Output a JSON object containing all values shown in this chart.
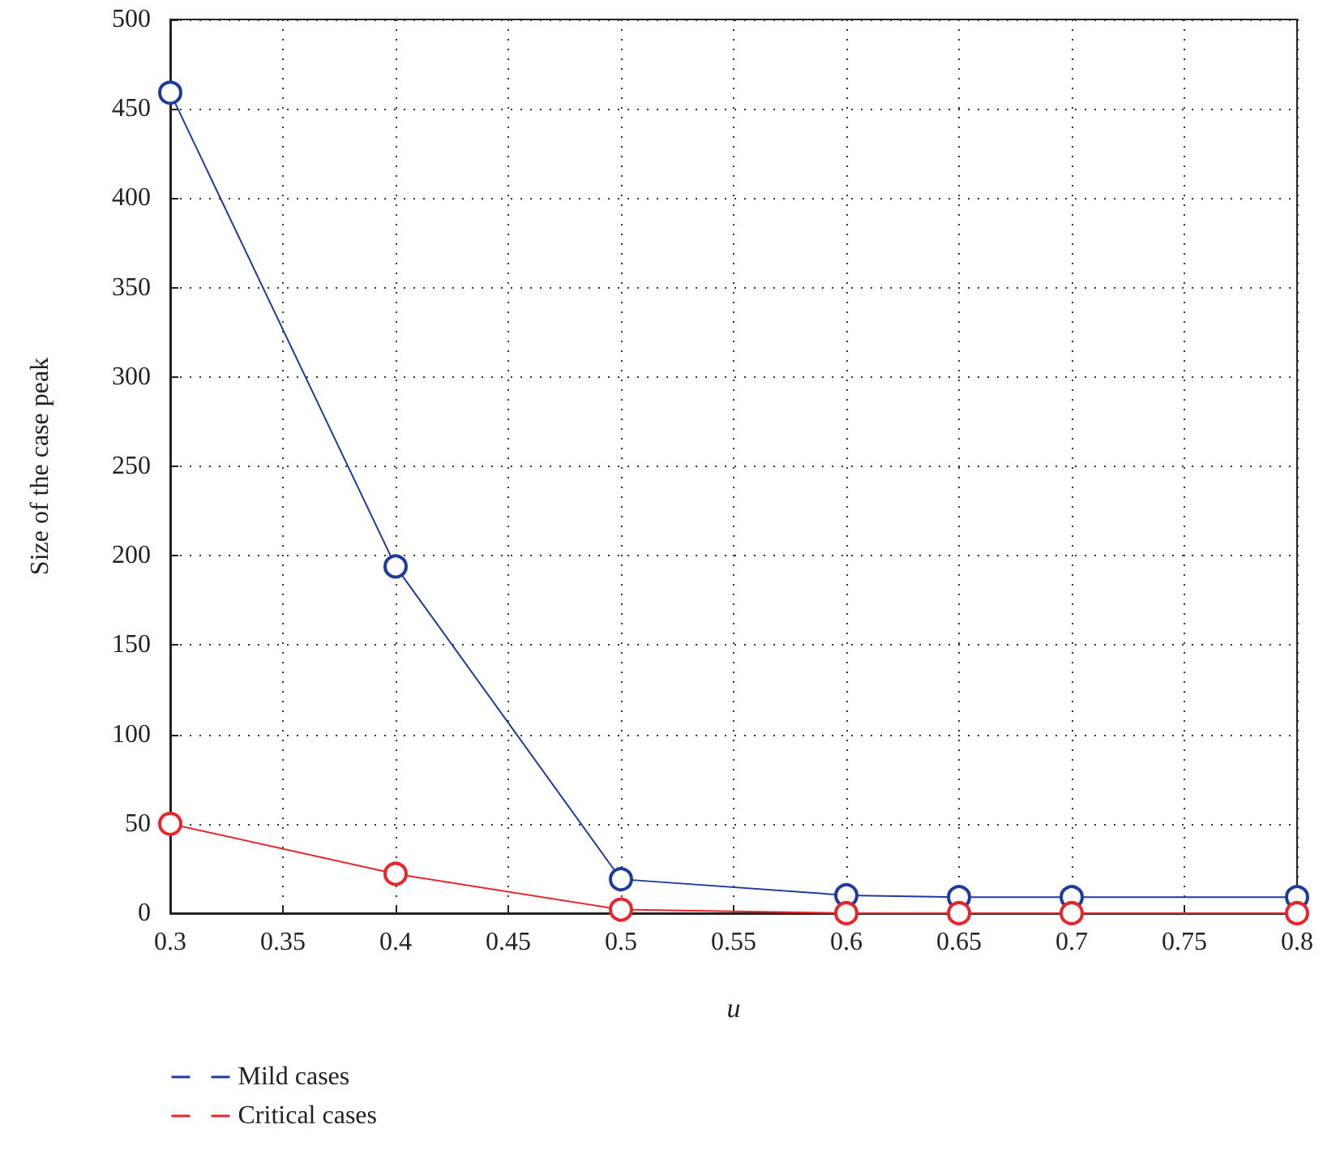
{
  "chart_data": {
    "type": "line",
    "xlabel": "u",
    "ylabel": "Size of the case peak",
    "x": [
      0.3,
      0.4,
      0.5,
      0.6,
      0.65,
      0.7,
      0.8
    ],
    "series": [
      {
        "name": "Mild cases",
        "color": "#1f3a9e",
        "values": [
          459,
          194,
          19,
          10,
          9,
          9,
          9
        ]
      },
      {
        "name": "Critical cases",
        "color": "#e8262a",
        "values": [
          50,
          22,
          2,
          0,
          0,
          0,
          0
        ]
      }
    ],
    "xlim": [
      0.3,
      0.8
    ],
    "xticks": [
      0.3,
      0.35,
      0.4,
      0.45,
      0.5,
      0.55,
      0.6,
      0.65,
      0.7,
      0.75,
      0.8
    ],
    "ylim": [
      0,
      500
    ],
    "yticks": [
      0,
      50,
      100,
      150,
      200,
      250,
      300,
      350,
      400,
      450,
      500
    ],
    "grid": true,
    "legend": "bottom left",
    "marker": "circle",
    "line_style": "solid"
  }
}
